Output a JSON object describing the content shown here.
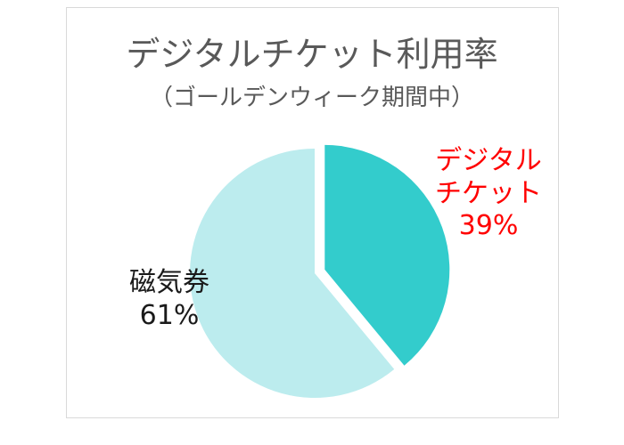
{
  "chart_data": {
    "type": "pie",
    "title": "デジタルチケット利用率",
    "subtitle": "（ゴールデンウィーク期間中）",
    "legend": "none",
    "slices": [
      {
        "label_lines": [
          "デジタル",
          "チケット"
        ],
        "value": 39,
        "value_label": "39%",
        "color": "#33cccc",
        "label_color": "#ff0000",
        "exploded": true
      },
      {
        "label_lines": [
          "磁気券"
        ],
        "value": 61,
        "value_label": "61%",
        "color": "#bcecee",
        "label_color": "#1a1a1a",
        "exploded": false
      }
    ]
  }
}
